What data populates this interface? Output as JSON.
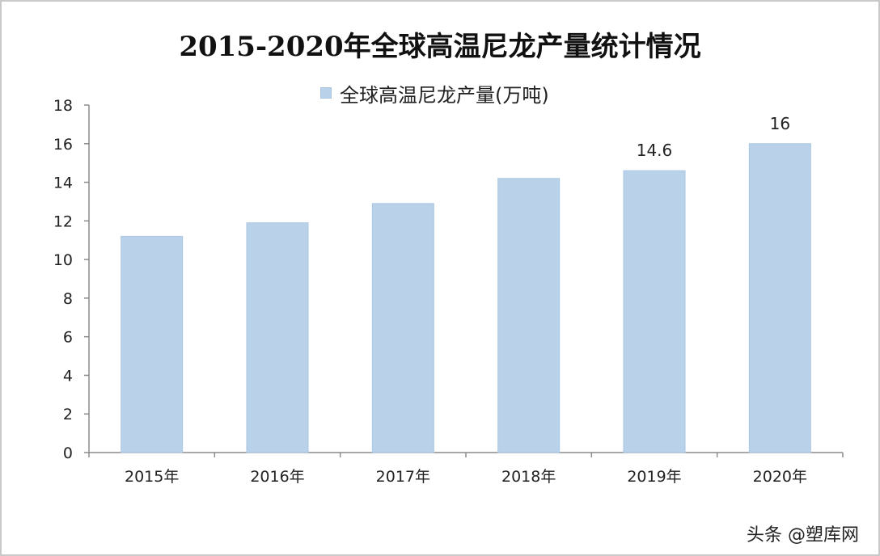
{
  "chart_data": {
    "type": "bar",
    "title": "2015-2020年全球高温尼龙产量统计情况",
    "categories": [
      "2015年",
      "2016年",
      "2017年",
      "2018年",
      "2019年",
      "2020年"
    ],
    "series": [
      {
        "name": "全球高温尼龙产量(万吨)",
        "values": [
          11.2,
          11.9,
          12.9,
          14.2,
          14.6,
          16
        ],
        "color": "#b9d2ea"
      }
    ],
    "data_labels": [
      "",
      "",
      "",
      "",
      "14.6",
      "16"
    ],
    "ylim": [
      0,
      18
    ],
    "yticks": [
      0,
      2,
      4,
      6,
      8,
      10,
      12,
      14,
      16,
      18
    ],
    "xlabel": "",
    "ylabel": "",
    "grid": false,
    "legend": "top-center"
  },
  "watermark": "头条 @塑库网"
}
